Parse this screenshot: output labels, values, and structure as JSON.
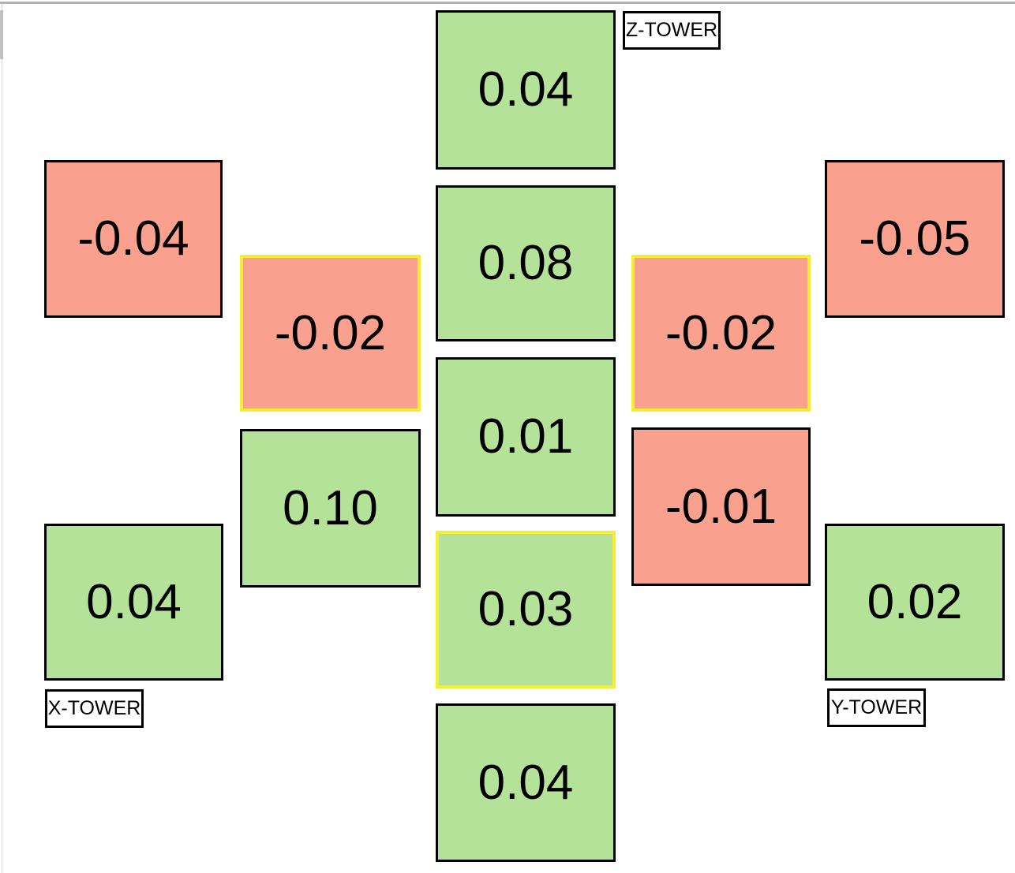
{
  "colors": {
    "positive": "#b4e298",
    "negative": "#faa08e",
    "highlight_border": "#f5ee33",
    "box_border": "#000000",
    "text": "#000000",
    "window_top_edge": "#b2b2b2",
    "scrollbar": "#c0c0c0"
  },
  "labels": {
    "z": "Z-TOWER",
    "x": "X-TOWER",
    "y": "Y-TOWER"
  },
  "cells": [
    {
      "id": "z-outer",
      "value": "0.04",
      "classes": "green"
    },
    {
      "id": "center-1",
      "value": "0.08",
      "classes": "green"
    },
    {
      "id": "center-2",
      "value": "0.01",
      "classes": "green"
    },
    {
      "id": "center-3",
      "value": "0.03",
      "classes": "green highlight"
    },
    {
      "id": "center-4",
      "value": "0.04",
      "classes": "green"
    },
    {
      "id": "left-outer-top",
      "value": "-0.04",
      "classes": "red"
    },
    {
      "id": "left-mid-top",
      "value": "-0.02",
      "classes": "red highlight"
    },
    {
      "id": "left-mid-bottom",
      "value": "0.10",
      "classes": "green"
    },
    {
      "id": "left-outer-bottom",
      "value": "0.04",
      "classes": "green"
    },
    {
      "id": "right-mid-top",
      "value": "-0.02",
      "classes": "red highlight"
    },
    {
      "id": "right-mid-bottom",
      "value": "-0.01",
      "classes": "red"
    },
    {
      "id": "right-outer-top",
      "value": "-0.05",
      "classes": "red"
    },
    {
      "id": "right-outer-bottom",
      "value": "0.02",
      "classes": "green"
    }
  ],
  "chart_data": {
    "type": "heatmap",
    "layout": "delta-tower cross arrangement: 5 staggered columns of value cells, positive values green, negative values red, three cells outlined in yellow",
    "annotations": [
      "Z-TOWER",
      "X-TOWER",
      "Y-TOWER"
    ],
    "cells": [
      {
        "position": "center-row1",
        "tower": "Z-TOWER",
        "value": 0.04,
        "sign": "positive",
        "highlighted": false
      },
      {
        "position": "center-row2",
        "value": 0.08,
        "sign": "positive",
        "highlighted": false
      },
      {
        "position": "center-row3",
        "value": 0.01,
        "sign": "positive",
        "highlighted": false
      },
      {
        "position": "center-row4",
        "value": 0.03,
        "sign": "positive",
        "highlighted": true
      },
      {
        "position": "center-row5",
        "value": 0.04,
        "sign": "positive",
        "highlighted": false
      },
      {
        "position": "far-left-upper",
        "value": -0.04,
        "sign": "negative",
        "highlighted": false
      },
      {
        "position": "mid-left-upper",
        "value": -0.02,
        "sign": "negative",
        "highlighted": true
      },
      {
        "position": "mid-left-lower",
        "value": 0.1,
        "sign": "positive",
        "highlighted": false
      },
      {
        "position": "far-left-lower",
        "tower": "X-TOWER",
        "value": 0.04,
        "sign": "positive",
        "highlighted": false
      },
      {
        "position": "mid-right-upper",
        "value": -0.02,
        "sign": "negative",
        "highlighted": true
      },
      {
        "position": "mid-right-lower",
        "value": -0.01,
        "sign": "negative",
        "highlighted": false
      },
      {
        "position": "far-right-upper",
        "value": -0.05,
        "sign": "negative",
        "highlighted": false
      },
      {
        "position": "far-right-lower",
        "tower": "Y-TOWER",
        "value": 0.02,
        "sign": "positive",
        "highlighted": false
      }
    ],
    "legend": {
      "positive_color": "green",
      "negative_color": "red",
      "highlight_style": "yellow border"
    }
  }
}
